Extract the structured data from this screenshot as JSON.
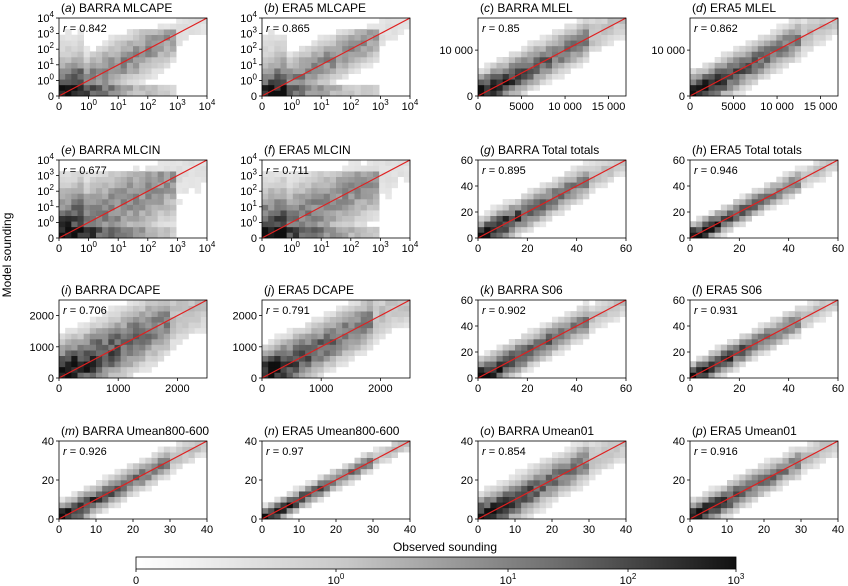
{
  "figure": {
    "ylabel": "Model sounding",
    "xlabel": "Observed sounding"
  },
  "colorbar": {
    "scale": "log",
    "colormap": "greys",
    "ticks": [
      {
        "value": 0,
        "label": "0"
      },
      {
        "value": 1,
        "base": "10",
        "exp": "0"
      },
      {
        "value": 10,
        "base": "10",
        "exp": "1"
      },
      {
        "value": 100,
        "base": "10",
        "exp": "2"
      },
      {
        "value": 1000,
        "base": "10",
        "exp": "3"
      }
    ]
  },
  "chart_data": [
    {
      "type": "heatmap",
      "letter": "a",
      "name": "BARRA MLCAPE",
      "r": "0.842",
      "scale": "symlog",
      "xticks": [
        "0",
        "1",
        "10",
        "100",
        "1000",
        "10000"
      ],
      "yticks": [
        "0",
        "1",
        "10",
        "100",
        "1000",
        "10000"
      ],
      "xlim": [
        0,
        10000
      ],
      "ylim": [
        0,
        10000
      ],
      "one_to_one_line": true
    },
    {
      "type": "heatmap",
      "letter": "b",
      "name": "ERA5 MLCAPE",
      "r": "0.865",
      "scale": "symlog",
      "xticks": [
        "0",
        "1",
        "10",
        "100",
        "1000",
        "10000"
      ],
      "yticks": [
        "0",
        "1",
        "10",
        "100",
        "1000",
        "10000"
      ],
      "xlim": [
        0,
        10000
      ],
      "ylim": [
        0,
        10000
      ],
      "one_to_one_line": true
    },
    {
      "type": "heatmap",
      "letter": "c",
      "name": "BARRA MLEL",
      "r": "0.85",
      "scale": "linear",
      "xticks": [
        "0",
        "5000",
        "10 000",
        "15 000"
      ],
      "yticks": [
        "0",
        "10 000"
      ],
      "xtick_values": [
        0,
        5000,
        10000,
        15000
      ],
      "ytick_values": [
        0,
        10000
      ],
      "xlim": [
        0,
        17000
      ],
      "ylim": [
        0,
        17000
      ],
      "one_to_one_line": true
    },
    {
      "type": "heatmap",
      "letter": "d",
      "name": "ERA5 MLEL",
      "r": "0.862",
      "scale": "linear",
      "xticks": [
        "0",
        "5000",
        "10 000",
        "15 000"
      ],
      "yticks": [
        "0",
        "10 000"
      ],
      "xtick_values": [
        0,
        5000,
        10000,
        15000
      ],
      "ytick_values": [
        0,
        10000
      ],
      "xlim": [
        0,
        17000
      ],
      "ylim": [
        0,
        17000
      ],
      "one_to_one_line": true
    },
    {
      "type": "heatmap",
      "letter": "e",
      "name": "BARRA MLCIN",
      "r": "0.677",
      "scale": "symlog",
      "xticks": [
        "0",
        "1",
        "10",
        "100",
        "1000",
        "10000"
      ],
      "yticks": [
        "0",
        "1",
        "10",
        "100",
        "1000",
        "10000"
      ],
      "xlim": [
        0,
        10000
      ],
      "ylim": [
        0,
        10000
      ],
      "one_to_one_line": true
    },
    {
      "type": "heatmap",
      "letter": "f",
      "name": "ERA5 MLCIN",
      "r": "0.711",
      "scale": "symlog",
      "xticks": [
        "0",
        "1",
        "10",
        "100",
        "1000",
        "10000"
      ],
      "yticks": [
        "0",
        "1",
        "10",
        "100",
        "1000",
        "10000"
      ],
      "xlim": [
        0,
        10000
      ],
      "ylim": [
        0,
        10000
      ],
      "one_to_one_line": true
    },
    {
      "type": "heatmap",
      "letter": "g",
      "name": "BARRA Total totals",
      "r": "0.895",
      "scale": "linear",
      "xticks": [
        "0",
        "20",
        "40",
        "60"
      ],
      "yticks": [
        "0",
        "20",
        "40",
        "60"
      ],
      "xtick_values": [
        0,
        20,
        40,
        60
      ],
      "ytick_values": [
        0,
        20,
        40,
        60
      ],
      "xlim": [
        0,
        60
      ],
      "ylim": [
        0,
        60
      ],
      "one_to_one_line": true
    },
    {
      "type": "heatmap",
      "letter": "h",
      "name": "ERA5 Total totals",
      "r": "0.946",
      "scale": "linear",
      "xticks": [
        "0",
        "20",
        "40",
        "60"
      ],
      "yticks": [
        "0",
        "20",
        "40",
        "60"
      ],
      "xtick_values": [
        0,
        20,
        40,
        60
      ],
      "ytick_values": [
        0,
        20,
        40,
        60
      ],
      "xlim": [
        0,
        60
      ],
      "ylim": [
        0,
        60
      ],
      "one_to_one_line": true
    },
    {
      "type": "heatmap",
      "letter": "i",
      "name": "BARRA DCAPE",
      "r": "0.706",
      "scale": "linear",
      "xticks": [
        "0",
        "1000",
        "2000"
      ],
      "yticks": [
        "0",
        "1000",
        "2000"
      ],
      "xtick_values": [
        0,
        1000,
        2000
      ],
      "ytick_values": [
        0,
        1000,
        2000
      ],
      "xlim": [
        0,
        2500
      ],
      "ylim": [
        0,
        2500
      ],
      "one_to_one_line": true
    },
    {
      "type": "heatmap",
      "letter": "j",
      "name": "ERA5 DCAPE",
      "r": "0.791",
      "scale": "linear",
      "xticks": [
        "0",
        "1000",
        "2000"
      ],
      "yticks": [
        "0",
        "1000",
        "2000"
      ],
      "xtick_values": [
        0,
        1000,
        2000
      ],
      "ytick_values": [
        0,
        1000,
        2000
      ],
      "xlim": [
        0,
        2500
      ],
      "ylim": [
        0,
        2500
      ],
      "one_to_one_line": true
    },
    {
      "type": "heatmap",
      "letter": "k",
      "name": "BARRA S06",
      "r": "0.902",
      "scale": "linear",
      "xticks": [
        "0",
        "20",
        "40",
        "60"
      ],
      "yticks": [
        "0",
        "20",
        "40",
        "60"
      ],
      "xtick_values": [
        0,
        20,
        40,
        60
      ],
      "ytick_values": [
        0,
        20,
        40,
        60
      ],
      "xlim": [
        0,
        60
      ],
      "ylim": [
        0,
        60
      ],
      "one_to_one_line": true
    },
    {
      "type": "heatmap",
      "letter": "l",
      "name": "ERA5 S06",
      "r": "0.931",
      "scale": "linear",
      "xticks": [
        "0",
        "20",
        "40",
        "60"
      ],
      "yticks": [
        "0",
        "20",
        "40",
        "60"
      ],
      "xtick_values": [
        0,
        20,
        40,
        60
      ],
      "ytick_values": [
        0,
        20,
        40,
        60
      ],
      "xlim": [
        0,
        60
      ],
      "ylim": [
        0,
        60
      ],
      "one_to_one_line": true
    },
    {
      "type": "heatmap",
      "letter": "m",
      "name": "BARRA Umean800-600",
      "r": "0.926",
      "scale": "linear",
      "xticks": [
        "0",
        "10",
        "20",
        "30",
        "40"
      ],
      "yticks": [
        "0",
        "20",
        "40"
      ],
      "xtick_values": [
        0,
        10,
        20,
        30,
        40
      ],
      "ytick_values": [
        0,
        20,
        40
      ],
      "xlim": [
        0,
        40
      ],
      "ylim": [
        0,
        40
      ],
      "one_to_one_line": true
    },
    {
      "type": "heatmap",
      "letter": "n",
      "name": "ERA5 Umean800-600",
      "r": "0.97",
      "scale": "linear",
      "xticks": [
        "0",
        "10",
        "20",
        "30",
        "40"
      ],
      "yticks": [
        "0",
        "20",
        "40"
      ],
      "xtick_values": [
        0,
        10,
        20,
        30,
        40
      ],
      "ytick_values": [
        0,
        20,
        40
      ],
      "xlim": [
        0,
        40
      ],
      "ylim": [
        0,
        40
      ],
      "one_to_one_line": true
    },
    {
      "type": "heatmap",
      "letter": "o",
      "name": "BARRA Umean01",
      "r": "0.854",
      "scale": "linear",
      "xticks": [
        "0",
        "10",
        "20",
        "30",
        "40"
      ],
      "yticks": [
        "0",
        "20",
        "40"
      ],
      "xtick_values": [
        0,
        10,
        20,
        30,
        40
      ],
      "ytick_values": [
        0,
        20,
        40
      ],
      "xlim": [
        0,
        40
      ],
      "ylim": [
        0,
        40
      ],
      "one_to_one_line": true
    },
    {
      "type": "heatmap",
      "letter": "p",
      "name": "ERA5 Umean01",
      "r": "0.916",
      "scale": "linear",
      "xticks": [
        "0",
        "10",
        "20",
        "30",
        "40"
      ],
      "yticks": [
        "0",
        "20",
        "40"
      ],
      "xtick_values": [
        0,
        10,
        20,
        30,
        40
      ],
      "ytick_values": [
        0,
        20,
        40
      ],
      "xlim": [
        0,
        40
      ],
      "ylim": [
        0,
        40
      ],
      "one_to_one_line": true
    }
  ]
}
